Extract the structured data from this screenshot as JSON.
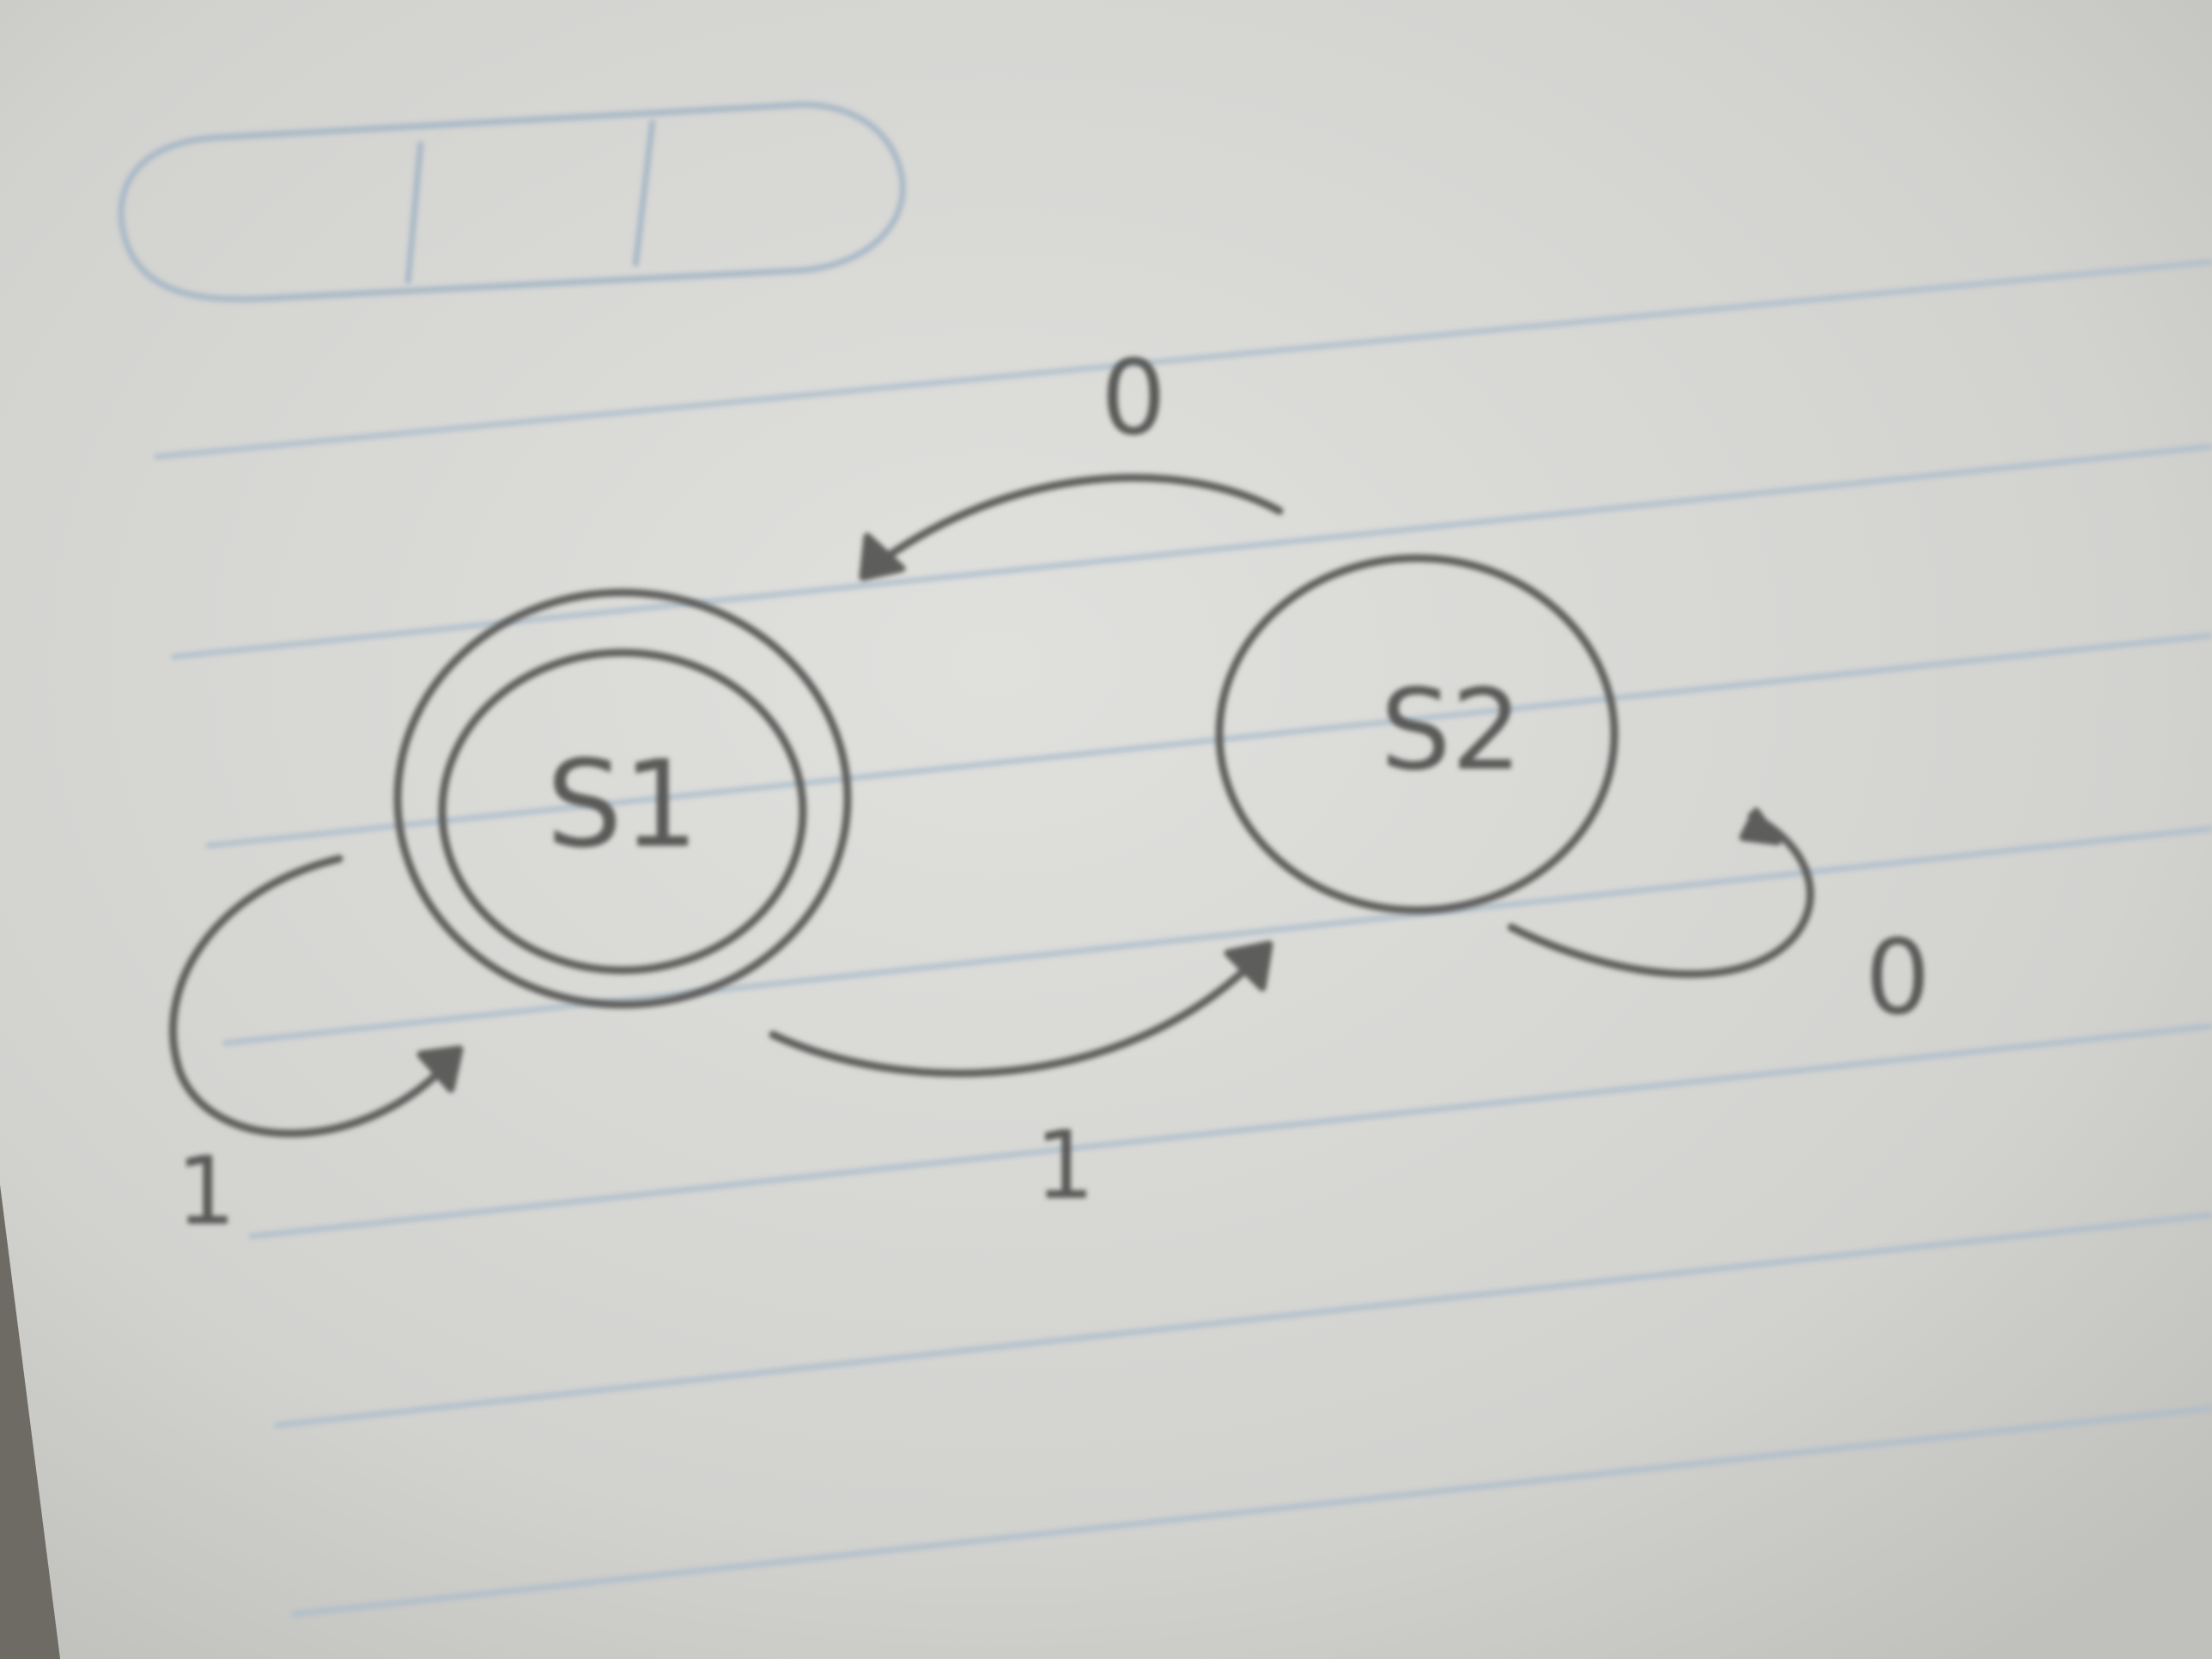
{
  "paper": {
    "background": "#d9d9d6",
    "rule_color": "#a9bccb",
    "ink_color": "#5d5d5b",
    "pencil_box_color": "#a7b8c6"
  },
  "states": [
    {
      "id": "s1",
      "label": "S1",
      "accepting": true
    },
    {
      "id": "s2",
      "label": "S2",
      "accepting": false
    }
  ],
  "transitions": [
    {
      "from": "s1",
      "to": "s1",
      "symbol": "1"
    },
    {
      "from": "s1",
      "to": "s2",
      "symbol": "1"
    },
    {
      "from": "s2",
      "to": "s1",
      "symbol": "0"
    },
    {
      "from": "s2",
      "to": "s2",
      "symbol": "0"
    }
  ]
}
